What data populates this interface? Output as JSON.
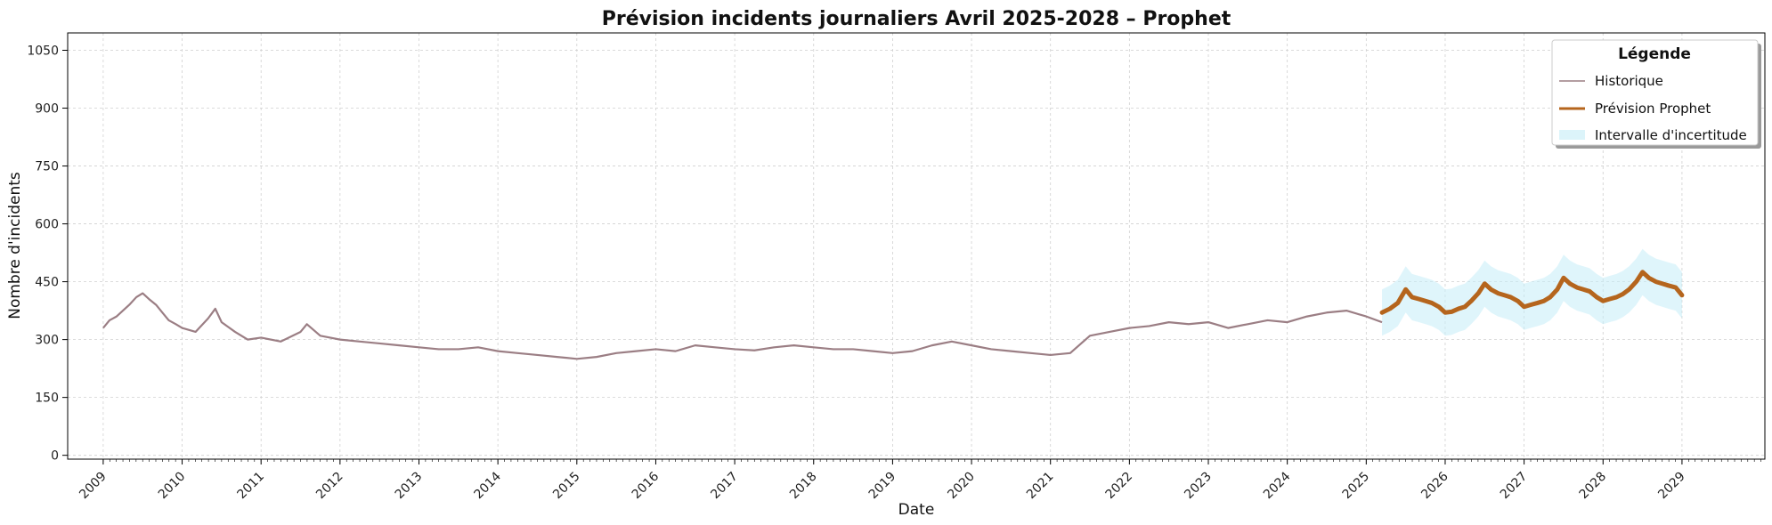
{
  "chart_data": {
    "type": "line",
    "title": "Prévision incidents journaliers Avril 2025-2028 – Prophet",
    "xlabel": "Date",
    "ylabel": "Nombre d'incidents",
    "xlim": [
      2008.55,
      2030.05
    ],
    "ylim": [
      -10,
      1095
    ],
    "x_ticks": [
      "2009",
      "2010",
      "2011",
      "2012",
      "2013",
      "2014",
      "2015",
      "2016",
      "2017",
      "2018",
      "2019",
      "2020",
      "2021",
      "2022",
      "2023",
      "2024",
      "2025",
      "2026",
      "2027",
      "2028",
      "2029"
    ],
    "y_ticks": [
      "0",
      "150",
      "300",
      "450",
      "600",
      "750",
      "900",
      "1050"
    ],
    "grid": true,
    "legend": {
      "title": "Légende",
      "position": "top-right",
      "entries": [
        "Historique",
        "Prévision Prophet",
        "Intervalle d'incertitude"
      ]
    },
    "series": [
      {
        "name": "Historique",
        "color": "#9b7e84",
        "x": [
          2009.0,
          2009.08,
          2009.17,
          2009.25,
          2009.33,
          2009.42,
          2009.5,
          2009.58,
          2009.67,
          2009.75,
          2009.83,
          2009.92,
          2010.0,
          2010.17,
          2010.33,
          2010.42,
          2010.5,
          2010.67,
          2010.83,
          2011.0,
          2011.25,
          2011.5,
          2011.58,
          2011.75,
          2012.0,
          2012.25,
          2012.5,
          2012.75,
          2013.0,
          2013.25,
          2013.5,
          2013.75,
          2014.0,
          2014.25,
          2014.5,
          2014.75,
          2015.0,
          2015.25,
          2015.5,
          2015.75,
          2016.0,
          2016.25,
          2016.5,
          2016.75,
          2017.0,
          2017.25,
          2017.5,
          2017.75,
          2018.0,
          2018.25,
          2018.5,
          2018.75,
          2019.0,
          2019.25,
          2019.5,
          2019.75,
          2020.0,
          2020.25,
          2020.5,
          2020.75,
          2021.0,
          2021.25,
          2021.5,
          2021.75,
          2022.0,
          2022.25,
          2022.5,
          2022.75,
          2023.0,
          2023.25,
          2023.5,
          2023.75,
          2024.0,
          2024.25,
          2024.5,
          2024.75,
          2025.0,
          2025.2
        ],
        "values": [
          330,
          350,
          360,
          375,
          390,
          410,
          420,
          405,
          390,
          370,
          350,
          340,
          330,
          320,
          355,
          380,
          345,
          320,
          300,
          305,
          295,
          320,
          340,
          310,
          300,
          295,
          290,
          285,
          280,
          275,
          275,
          280,
          270,
          265,
          260,
          255,
          250,
          255,
          265,
          270,
          275,
          270,
          285,
          280,
          275,
          272,
          280,
          285,
          280,
          275,
          275,
          270,
          265,
          270,
          285,
          295,
          285,
          275,
          270,
          265,
          260,
          265,
          310,
          320,
          330,
          335,
          345,
          340,
          345,
          330,
          340,
          350,
          345,
          360,
          370,
          375,
          360,
          345
        ]
      },
      {
        "name": "Prévision Prophet",
        "color": "#b5651d",
        "x": [
          2025.2,
          2025.3,
          2025.4,
          2025.5,
          2025.58,
          2025.67,
          2025.75,
          2025.83,
          2025.92,
          2026.0,
          2026.08,
          2026.17,
          2026.25,
          2026.33,
          2026.42,
          2026.5,
          2026.58,
          2026.67,
          2026.75,
          2026.83,
          2026.92,
          2027.0,
          2027.08,
          2027.17,
          2027.25,
          2027.33,
          2027.42,
          2027.5,
          2027.58,
          2027.67,
          2027.75,
          2027.83,
          2027.92,
          2028.0,
          2028.08,
          2028.17,
          2028.25,
          2028.33,
          2028.42,
          2028.5,
          2028.58,
          2028.67,
          2028.75,
          2028.83,
          2028.92,
          2029.0
        ],
        "values": [
          370,
          380,
          395,
          430,
          410,
          405,
          400,
          395,
          385,
          370,
          372,
          380,
          385,
          400,
          420,
          445,
          430,
          420,
          415,
          410,
          400,
          385,
          390,
          395,
          400,
          410,
          430,
          460,
          445,
          435,
          430,
          425,
          410,
          400,
          405,
          410,
          418,
          430,
          450,
          475,
          460,
          450,
          445,
          440,
          435,
          415
        ]
      }
    ],
    "uncertainty_band": {
      "name": "Intervalle d'incertitude",
      "color": "#c5ecf7",
      "half_width": 60
    }
  }
}
